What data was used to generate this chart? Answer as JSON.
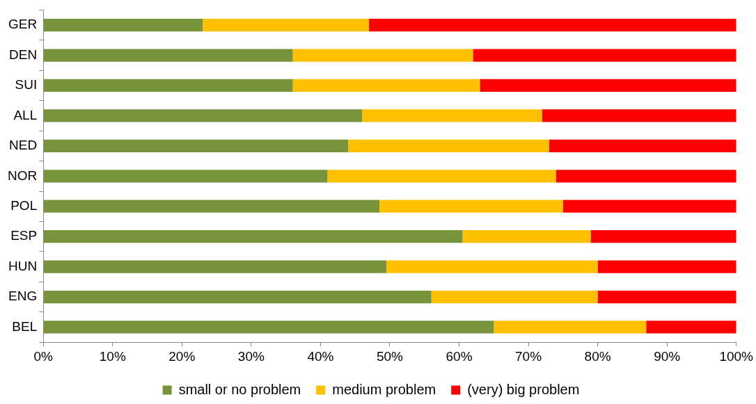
{
  "chart_data": {
    "type": "bar",
    "orientation": "horizontal",
    "stacked": true,
    "categories": [
      "GER",
      "DEN",
      "SUI",
      "ALL",
      "NED",
      "NOR",
      "POL",
      "ESP",
      "HUN",
      "ENG",
      "BEL"
    ],
    "series": [
      {
        "name": "small or no problem",
        "color": "#77933c",
        "values": [
          23,
          36,
          36,
          46,
          44,
          41,
          48.5,
          60.5,
          49.5,
          56,
          65
        ]
      },
      {
        "name": "medium problem",
        "color": "#ffc000",
        "values": [
          24,
          26,
          27,
          26,
          29,
          33,
          26.5,
          18.5,
          30.5,
          24,
          22
        ]
      },
      {
        "name": "(very) big problem",
        "color": "#ff0000",
        "values": [
          53,
          38,
          37,
          28,
          27,
          26,
          25,
          21,
          20,
          20,
          13
        ]
      }
    ],
    "xlim": [
      0,
      100
    ],
    "xticks": [
      {
        "value": 0,
        "label": "0%"
      },
      {
        "value": 10,
        "label": "10%"
      },
      {
        "value": 20,
        "label": "20%"
      },
      {
        "value": 30,
        "label": "30%"
      },
      {
        "value": 40,
        "label": "40%"
      },
      {
        "value": 50,
        "label": "50%"
      },
      {
        "value": 60,
        "label": "60%"
      },
      {
        "value": 70,
        "label": "70%"
      },
      {
        "value": 80,
        "label": "80%"
      },
      {
        "value": 90,
        "label": "90%"
      },
      {
        "value": 100,
        "label": "100%"
      }
    ],
    "grid": false,
    "legend": "bottom"
  }
}
